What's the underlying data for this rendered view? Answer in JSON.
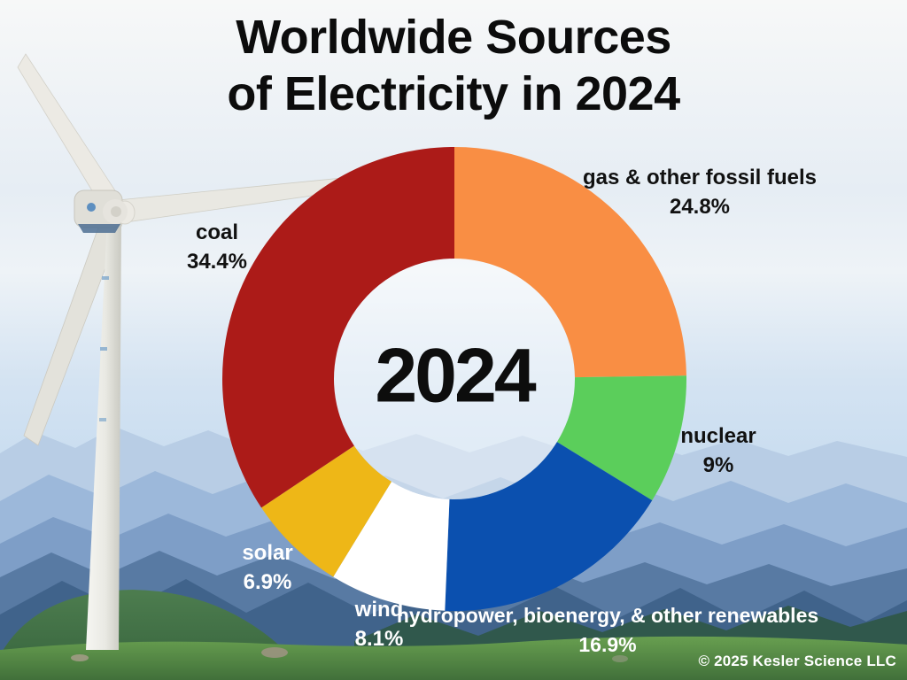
{
  "header": {
    "title_line1": "Worldwide Sources",
    "title_line2": "of Electricity in 2024"
  },
  "chart_data": {
    "type": "pie",
    "variant": "donut",
    "title": "Worldwide Sources of Electricity in 2024",
    "center_label": "2024",
    "unit": "%",
    "start_angle_deg": 0,
    "direction": "clockwise",
    "total": 100,
    "segments": [
      {
        "label": "gas & other fossil fuels",
        "value": 24.8,
        "pct_label": "24.8%",
        "color": "#F98E44",
        "label_color": "#111111"
      },
      {
        "label": "nuclear",
        "value": 9,
        "pct_label": "9%",
        "color": "#5BCE5B",
        "label_color": "#111111"
      },
      {
        "label": "hydropower, bioenergy, & other renewables",
        "value": 16.9,
        "pct_label": "16.9%",
        "color": "#0B50AF",
        "label_color": "#FFFFFF"
      },
      {
        "label": "wind",
        "value": 8.1,
        "pct_label": "8.1%",
        "color": "#FFFFFF",
        "label_color": "#FFFFFF"
      },
      {
        "label": "solar",
        "value": 6.9,
        "pct_label": "6.9%",
        "color": "#EEB717",
        "label_color": "#FFFFFF"
      },
      {
        "label": "coal",
        "value": 34.4,
        "pct_label": "34.4%",
        "color": "#AC1B18",
        "label_color": "#111111"
      }
    ]
  },
  "footer": {
    "copyright": "© 2025 Kesler Science LLC"
  }
}
